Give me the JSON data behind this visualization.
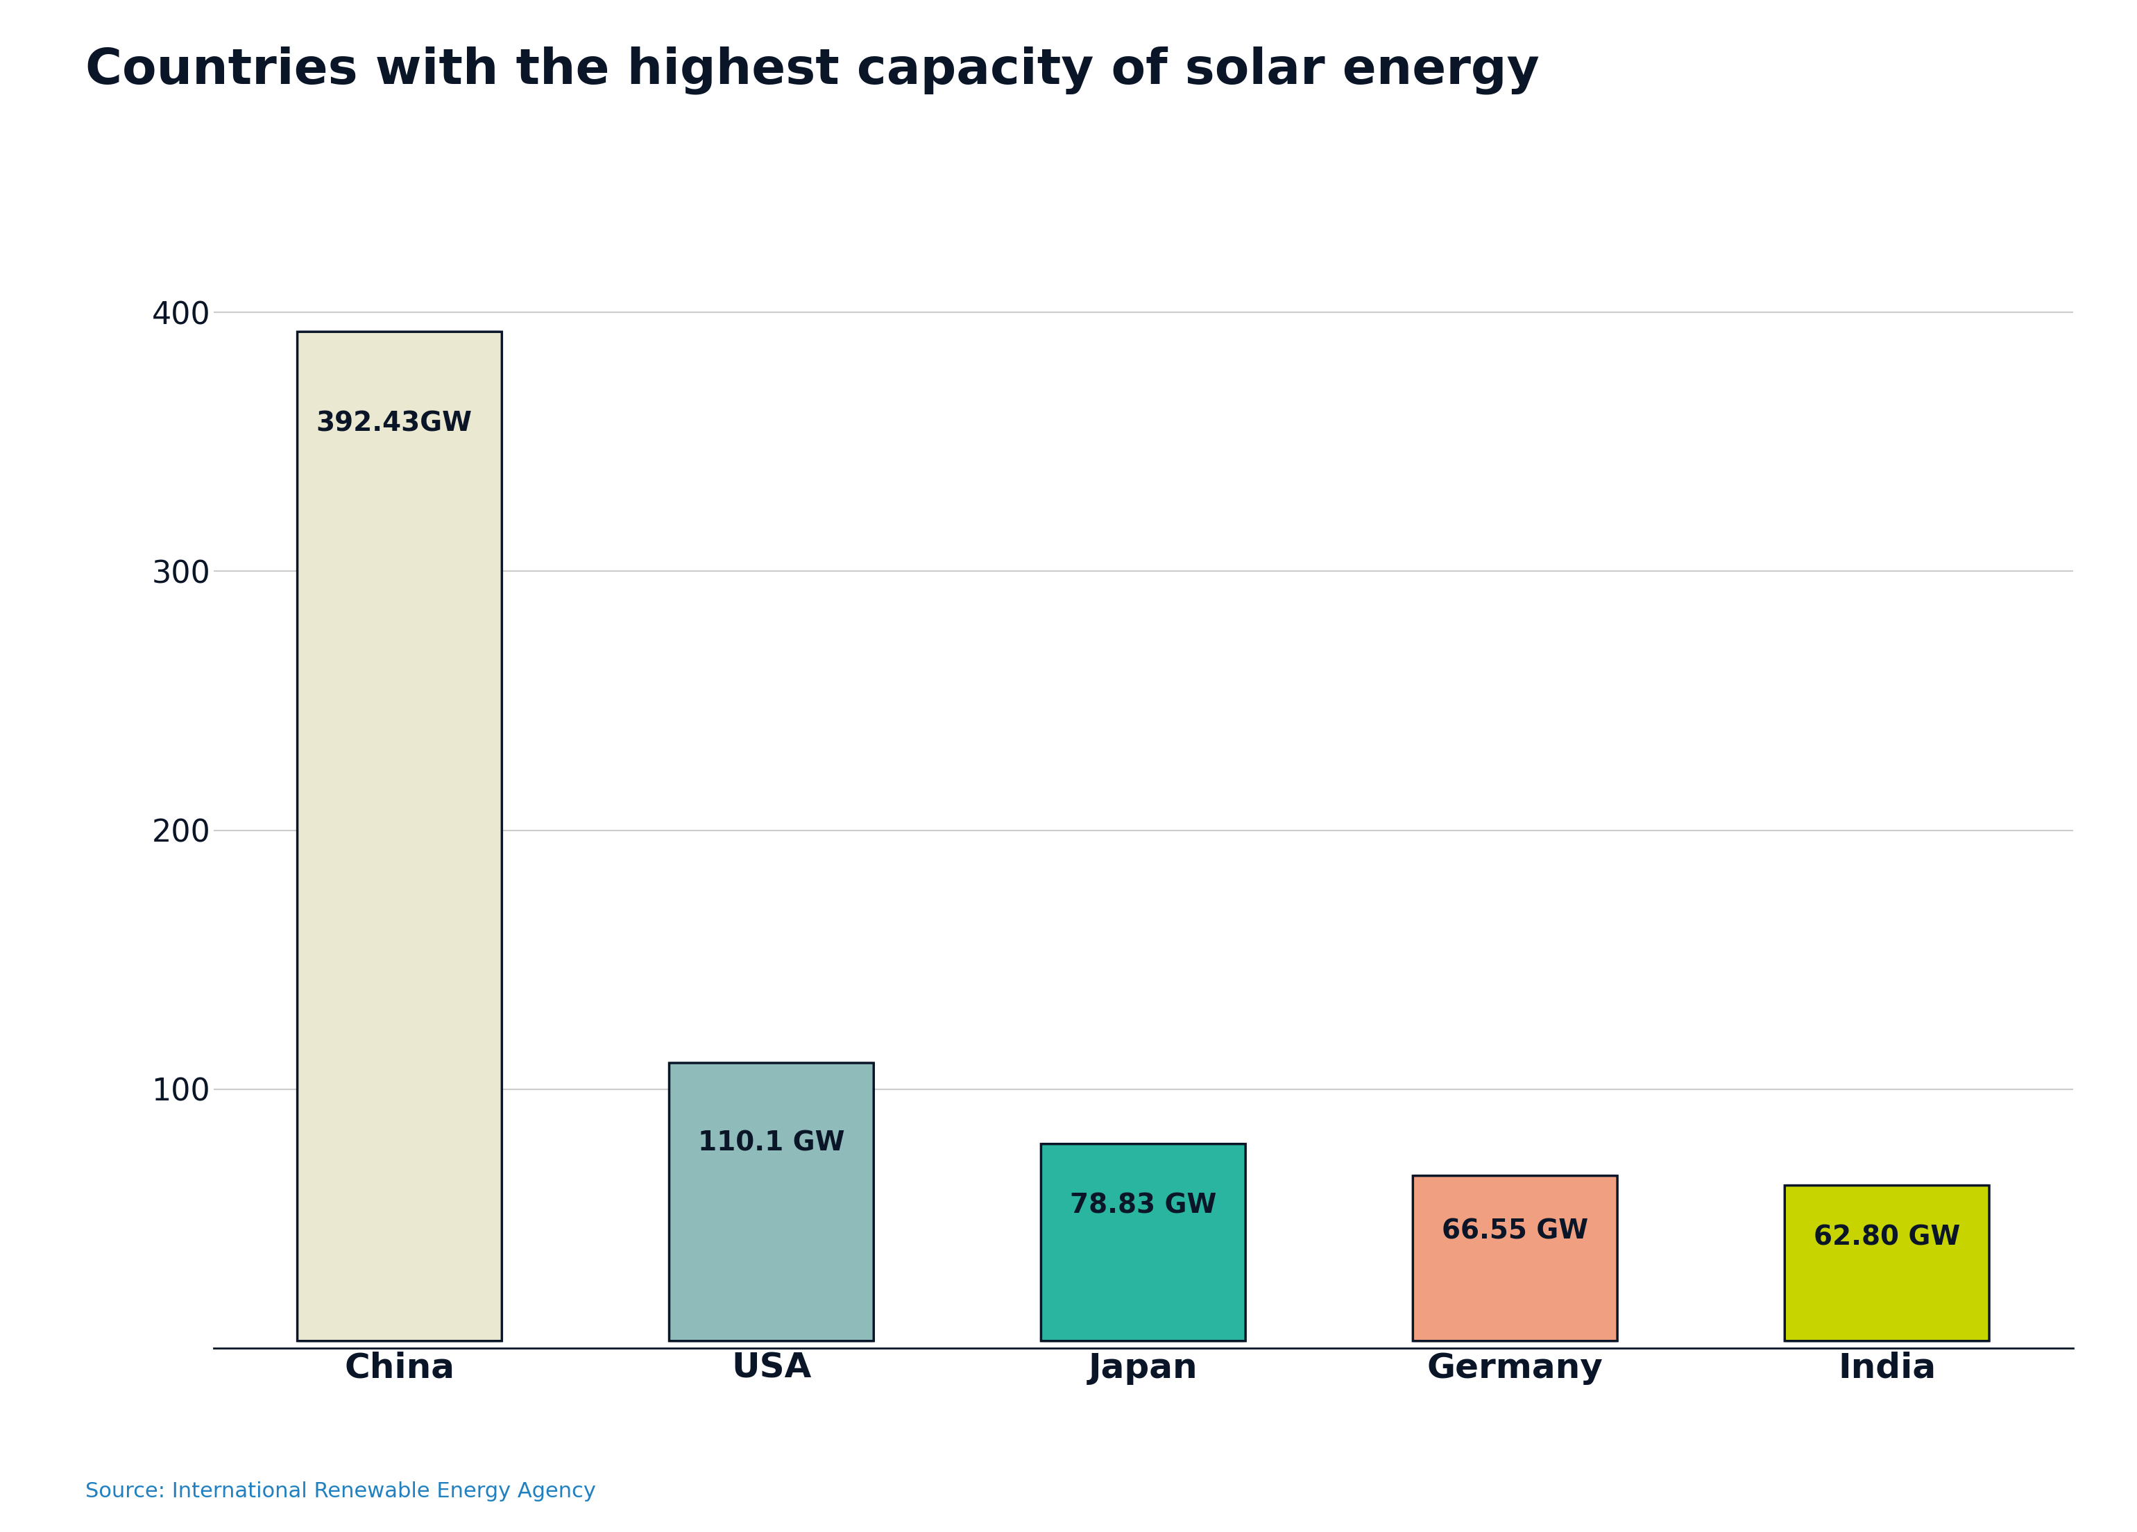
{
  "title": "Countries with the highest capacity of solar energy",
  "categories": [
    "China",
    "USA",
    "Japan",
    "Germany",
    "India"
  ],
  "values": [
    392.43,
    110.1,
    78.83,
    66.55,
    62.8
  ],
  "labels": [
    "392.43GW",
    "110.1 GW",
    "78.83 GW",
    "66.55 GW",
    "62.80 GW"
  ],
  "bar_colors": [
    "#eae8d0",
    "#8fbcbb",
    "#2ab5a0",
    "#f0a080",
    "#c8d400"
  ],
  "bar_edge_color": "#0a1628",
  "title_color": "#0a1628",
  "tick_color": "#0a1628",
  "label_color": "#0a1628",
  "source_text": "Source: International Renewable Energy Agency",
  "source_color": "#2080c0",
  "ylim": [
    0,
    420
  ],
  "yticks": [
    100,
    200,
    300,
    400
  ],
  "title_fontsize": 52,
  "label_fontsize": 28,
  "tick_fontsize": 32,
  "source_fontsize": 22,
  "xlabel_fontsize": 36,
  "background_color": "#ffffff",
  "grid_color": "#cccccc"
}
